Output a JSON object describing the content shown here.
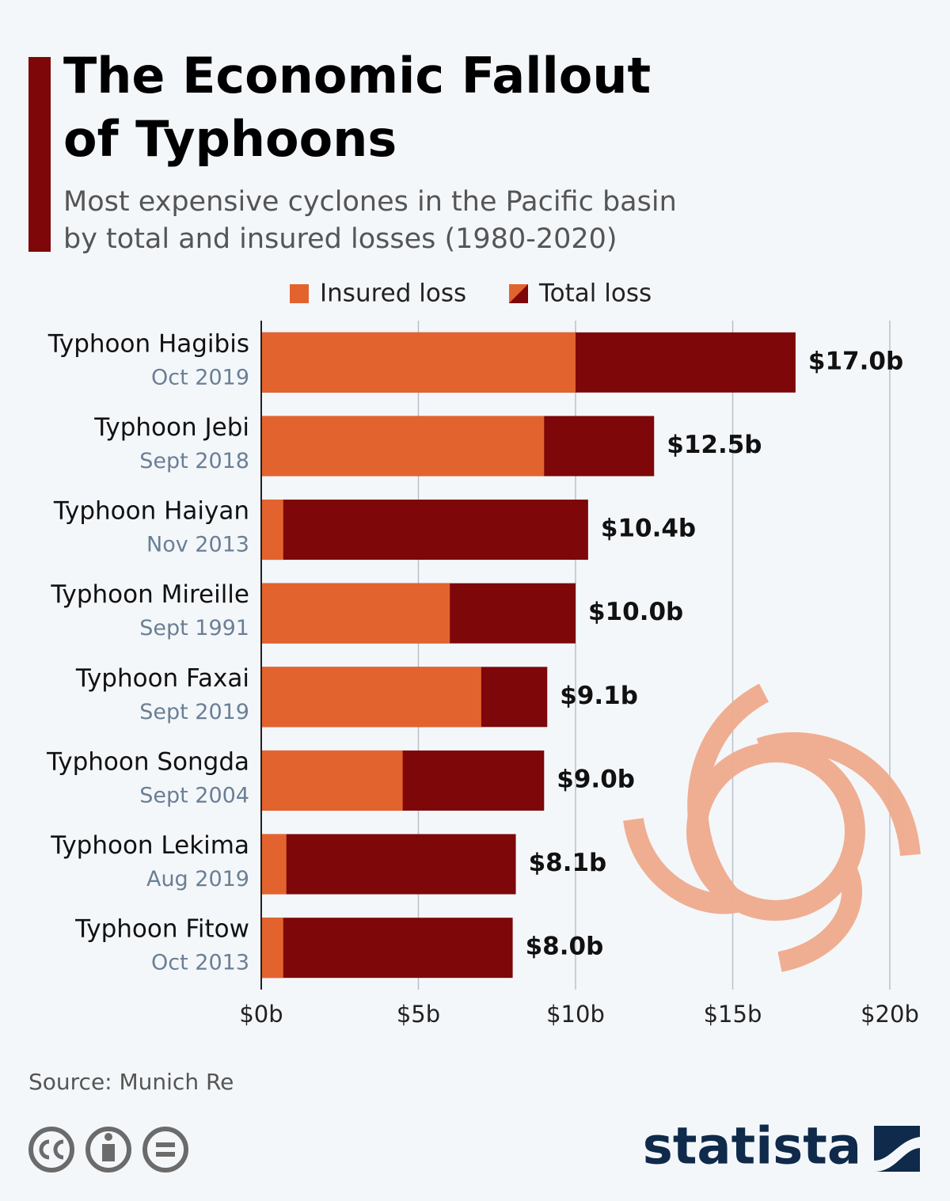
{
  "chart_data": {
    "type": "bar",
    "title": "The Economic Fallout of Typhoons",
    "subtitle": "Most expensive cyclones in the Pacific basin by total and insured losses (1980-2020)",
    "categories": [
      "Typhoon Hagibis",
      "Typhoon Jebi",
      "Typhoon Haiyan",
      "Typhoon Mireille",
      "Typhoon Faxai",
      "Typhoon Songda",
      "Typhoon Lekima",
      "Typhoon Fitow"
    ],
    "dates": [
      "Oct 2019",
      "Sept 2018",
      "Nov 2013",
      "Sept 1991",
      "Sept 2019",
      "Sept 2004",
      "Aug 2019",
      "Oct 2013"
    ],
    "series": [
      {
        "name": "Total loss",
        "color": "#7d0709",
        "values": [
          17.0,
          12.5,
          10.4,
          10.0,
          9.1,
          9.0,
          8.1,
          8.0
        ],
        "value_labels": [
          "$17.0b",
          "$12.5b",
          "$10.4b",
          "$10.0b",
          "$9.1b",
          "$9.0b",
          "$8.1b",
          "$8.0b"
        ]
      },
      {
        "name": "Insured loss",
        "color": "#e3632f",
        "values": [
          10.0,
          9.0,
          0.7,
          6.0,
          7.0,
          4.5,
          0.8,
          0.7
        ]
      }
    ],
    "xlim": [
      0,
      20
    ],
    "xticks": [
      {
        "value": 0,
        "label": "$0b"
      },
      {
        "value": 5,
        "label": "$5b"
      },
      {
        "value": 10,
        "label": "$10b"
      },
      {
        "value": 15,
        "label": "$15b"
      },
      {
        "value": 20,
        "label": "$20b"
      }
    ],
    "grid": true,
    "source": "Source: Munich Re",
    "brand": "statista"
  }
}
